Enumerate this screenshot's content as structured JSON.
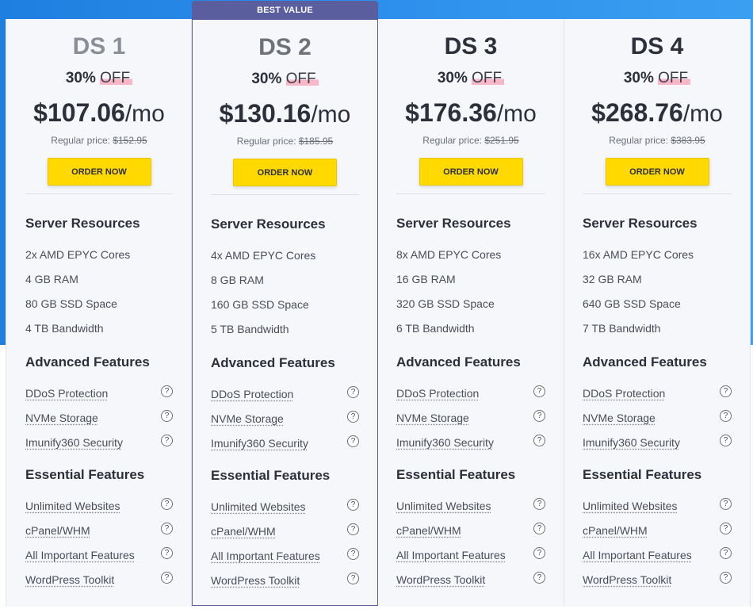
{
  "ribbon_label": "BEST VALUE",
  "plans": [
    {
      "name": "DS 1",
      "discount_pct": "30%",
      "discount_off": "OFF",
      "price": "$107.06",
      "per": "/mo",
      "regular_label": "Regular price:",
      "regular_price": "$152.95",
      "order_label": "ORDER NOW",
      "section_resources": "Server Resources",
      "resources": [
        "2x AMD EPYC Cores",
        "4 GB RAM",
        "80 GB SSD Space",
        "4 TB Bandwidth"
      ],
      "section_advanced": "Advanced Features",
      "advanced": [
        "DDoS Protection",
        "NVMe Storage",
        "Imunify360 Security"
      ],
      "section_essential": "Essential Features",
      "essential": [
        "Unlimited Websites",
        "cPanel/WHM",
        "All Important Features",
        "WordPress Toolkit"
      ]
    },
    {
      "name": "DS 2",
      "discount_pct": "30%",
      "discount_off": "OFF",
      "price": "$130.16",
      "per": "/mo",
      "regular_label": "Regular price:",
      "regular_price": "$185.95",
      "order_label": "ORDER NOW",
      "section_resources": "Server Resources",
      "resources": [
        "4x AMD EPYC Cores",
        "8 GB RAM",
        "160 GB SSD Space",
        "5 TB Bandwidth"
      ],
      "section_advanced": "Advanced Features",
      "advanced": [
        "DDoS Protection",
        "NVMe Storage",
        "Imunify360 Security"
      ],
      "section_essential": "Essential Features",
      "essential": [
        "Unlimited Websites",
        "cPanel/WHM",
        "All Important Features",
        "WordPress Toolkit"
      ]
    },
    {
      "name": "DS 3",
      "discount_pct": "30%",
      "discount_off": "OFF",
      "price": "$176.36",
      "per": "/mo",
      "regular_label": "Regular price:",
      "regular_price": "$251.95",
      "order_label": "ORDER NOW",
      "section_resources": "Server Resources",
      "resources": [
        "8x AMD EPYC Cores",
        "16 GB RAM",
        "320 GB SSD Space",
        "6 TB Bandwidth"
      ],
      "section_advanced": "Advanced Features",
      "advanced": [
        "DDoS Protection",
        "NVMe Storage",
        "Imunify360 Security"
      ],
      "section_essential": "Essential Features",
      "essential": [
        "Unlimited Websites",
        "cPanel/WHM",
        "All Important Features",
        "WordPress Toolkit"
      ]
    },
    {
      "name": "DS 4",
      "discount_pct": "30%",
      "discount_off": "OFF",
      "price": "$268.76",
      "per": "/mo",
      "regular_label": "Regular price:",
      "regular_price": "$383.95",
      "order_label": "ORDER NOW",
      "section_resources": "Server Resources",
      "resources": [
        "16x AMD EPYC Cores",
        "32 GB RAM",
        "640 GB SSD Space",
        "7 TB Bandwidth"
      ],
      "section_advanced": "Advanced Features",
      "advanced": [
        "DDoS Protection",
        "NVMe Storage",
        "Imunify360 Security"
      ],
      "section_essential": "Essential Features",
      "essential": [
        "Unlimited Websites",
        "cPanel/WHM",
        "All Important Features",
        "WordPress Toolkit"
      ]
    }
  ],
  "help_icon_glyph": "?",
  "colors": {
    "accent_button": "#ffd900",
    "ribbon": "#5a5d9e",
    "background": "#2d8fec"
  }
}
